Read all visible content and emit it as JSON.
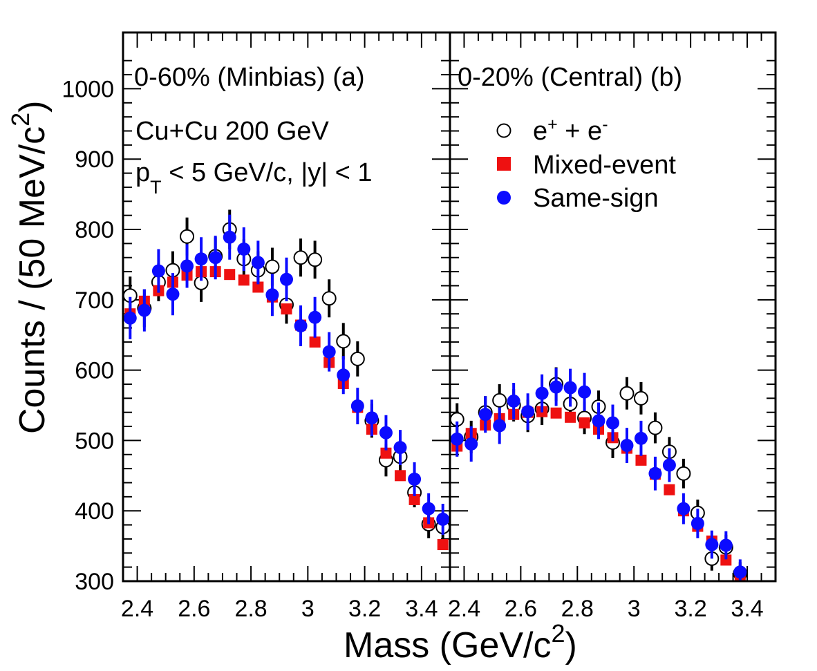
{
  "chart_data": [
    {
      "type": "scatter",
      "panel": "a",
      "title": "0-60% (Minbias) (a)",
      "annotations": [
        "Cu+Cu 200 GeV",
        "p_T < 5 GeV/c, |y| < 1"
      ],
      "xlabel": "Mass (GeV/c²)",
      "ylabel": "Counts / (50 MeV/c²)",
      "xlim": [
        2.35,
        3.5
      ],
      "ylim": [
        300,
        1080
      ],
      "x_ticks": [
        "2.4",
        "2.6",
        "2.8",
        "3",
        "3.2",
        "3.4"
      ],
      "y_ticks": [
        "300",
        "400",
        "500",
        "600",
        "700",
        "800",
        "900",
        "1000"
      ],
      "series": [
        {
          "name": "e⁺ + e⁻",
          "marker": "open-circle",
          "color": "#000000",
          "x": [
            2.375,
            2.425,
            2.475,
            2.525,
            2.575,
            2.625,
            2.675,
            2.725,
            2.775,
            2.825,
            2.875,
            2.925,
            2.975,
            3.025,
            3.075,
            3.125,
            3.175,
            3.225,
            3.275,
            3.325,
            3.375,
            3.425,
            3.475
          ],
          "y": [
            706,
            688,
            725,
            742,
            790,
            724,
            762,
            800,
            758,
            742,
            747,
            693,
            760,
            757,
            702,
            641,
            616,
            528,
            472,
            477,
            426,
            381,
            377
          ],
          "err": [
            27,
            27,
            27,
            27,
            27,
            27,
            27,
            28,
            28,
            27,
            27,
            27,
            27,
            27,
            27,
            26,
            25,
            24,
            23,
            23,
            21,
            20,
            20
          ]
        },
        {
          "name": "Mixed-event",
          "marker": "filled-square",
          "color": "#ee1111",
          "x": [
            2.375,
            2.425,
            2.475,
            2.525,
            2.575,
            2.625,
            2.675,
            2.725,
            2.775,
            2.825,
            2.875,
            2.925,
            2.975,
            3.025,
            3.075,
            3.125,
            3.175,
            3.225,
            3.275,
            3.325,
            3.375,
            3.425,
            3.475
          ],
          "y": [
            680,
            698,
            713,
            725,
            735,
            740,
            740,
            736,
            728,
            718,
            704,
            687,
            664,
            640,
            611,
            581,
            547,
            516,
            482,
            450,
            416,
            383,
            352
          ]
        },
        {
          "name": "Same-sign",
          "marker": "filled-circle",
          "color": "#0b0bff",
          "x": [
            2.375,
            2.425,
            2.475,
            2.525,
            2.575,
            2.625,
            2.675,
            2.725,
            2.775,
            2.825,
            2.875,
            2.925,
            2.975,
            3.025,
            3.075,
            3.125,
            3.175,
            3.225,
            3.275,
            3.325,
            3.375,
            3.425,
            3.475
          ],
          "y": [
            674,
            685,
            741,
            708,
            748,
            758,
            760,
            789,
            772,
            753,
            707,
            729,
            663,
            675,
            626,
            593,
            549,
            532,
            511,
            490,
            445,
            403,
            388
          ],
          "err": [
            30,
            30,
            31,
            30,
            31,
            31,
            31,
            32,
            31,
            31,
            30,
            31,
            29,
            29,
            28,
            27,
            26,
            26,
            25,
            25,
            24,
            22,
            22
          ]
        }
      ]
    },
    {
      "type": "scatter",
      "panel": "b",
      "title": "0-20% (Central)  (b)",
      "xlabel": "Mass (GeV/c²)",
      "xlim": [
        2.35,
        3.5
      ],
      "ylim": [
        300,
        1080
      ],
      "x_ticks": [
        "2.4",
        "2.6",
        "2.8",
        "3",
        "3.2",
        "3.4"
      ],
      "legend": {
        "position": "upper-right",
        "entries": [
          "e⁺ + e⁻",
          "Mixed-event",
          "Same-sign"
        ]
      },
      "series": [
        {
          "name": "e⁺ + e⁻",
          "marker": "open-circle",
          "color": "#000000",
          "x": [
            2.375,
            2.425,
            2.475,
            2.525,
            2.575,
            2.625,
            2.675,
            2.725,
            2.775,
            2.825,
            2.875,
            2.925,
            2.975,
            3.025,
            3.075,
            3.125,
            3.175,
            3.225,
            3.275,
            3.325,
            3.375
          ],
          "y": [
            530,
            505,
            540,
            557,
            550,
            535,
            545,
            580,
            552,
            532,
            548,
            497,
            567,
            560,
            518,
            484,
            453,
            397,
            332,
            348,
            311
          ],
          "err": [
            23,
            23,
            23,
            23,
            23,
            23,
            23,
            24,
            23,
            23,
            23,
            22,
            23,
            23,
            22,
            21,
            21,
            19,
            17,
            18,
            16
          ]
        },
        {
          "name": "Mixed-event",
          "marker": "filled-square",
          "color": "#ee1111",
          "x": [
            2.375,
            2.425,
            2.475,
            2.525,
            2.575,
            2.625,
            2.675,
            2.725,
            2.775,
            2.825,
            2.875,
            2.925,
            2.975,
            3.025,
            3.075,
            3.125,
            3.175,
            3.225,
            3.275,
            3.325,
            3.375
          ],
          "y": [
            492,
            510,
            522,
            531,
            537,
            540,
            541,
            539,
            533,
            525,
            516,
            504,
            489,
            472,
            452,
            430,
            400,
            378,
            357,
            330,
            305
          ]
        },
        {
          "name": "Same-sign",
          "marker": "filled-circle",
          "color": "#0b0bff",
          "x": [
            2.375,
            2.425,
            2.475,
            2.525,
            2.575,
            2.625,
            2.675,
            2.725,
            2.775,
            2.825,
            2.875,
            2.925,
            2.975,
            3.025,
            3.075,
            3.125,
            3.175,
            3.225,
            3.275,
            3.325,
            3.375
          ],
          "y": [
            502,
            495,
            537,
            521,
            556,
            541,
            567,
            576,
            575,
            569,
            528,
            525,
            493,
            503,
            453,
            465,
            403,
            382,
            352,
            351,
            313
          ],
          "err": [
            25,
            25,
            26,
            26,
            26,
            26,
            27,
            27,
            27,
            27,
            26,
            26,
            25,
            25,
            24,
            24,
            22,
            21,
            20,
            20,
            18
          ]
        }
      ]
    }
  ],
  "labels": {
    "panel_a_title": "0-60% (Minbias) (a)",
    "panel_b_title": "0-20% (Central)  (b)",
    "system": "Cu+Cu 200 GeV",
    "cuts_p": "p",
    "cuts_sub": "T",
    "cuts_rest": " < 5 GeV/c, |y| < 1",
    "xlabel_main": "Mass (GeV/c",
    "xlabel_sup": "2",
    "xlabel_end": ")",
    "ylabel_main": "Counts / (50 MeV/c",
    "ylabel_sup": "2",
    "ylabel_end": ")",
    "legend_ee_e1": "e",
    "legend_ee_sup1": "+",
    "legend_ee_mid": " + e",
    "legend_ee_sup2": "-",
    "legend_mixed": "Mixed-event",
    "legend_same": "Same-sign"
  }
}
